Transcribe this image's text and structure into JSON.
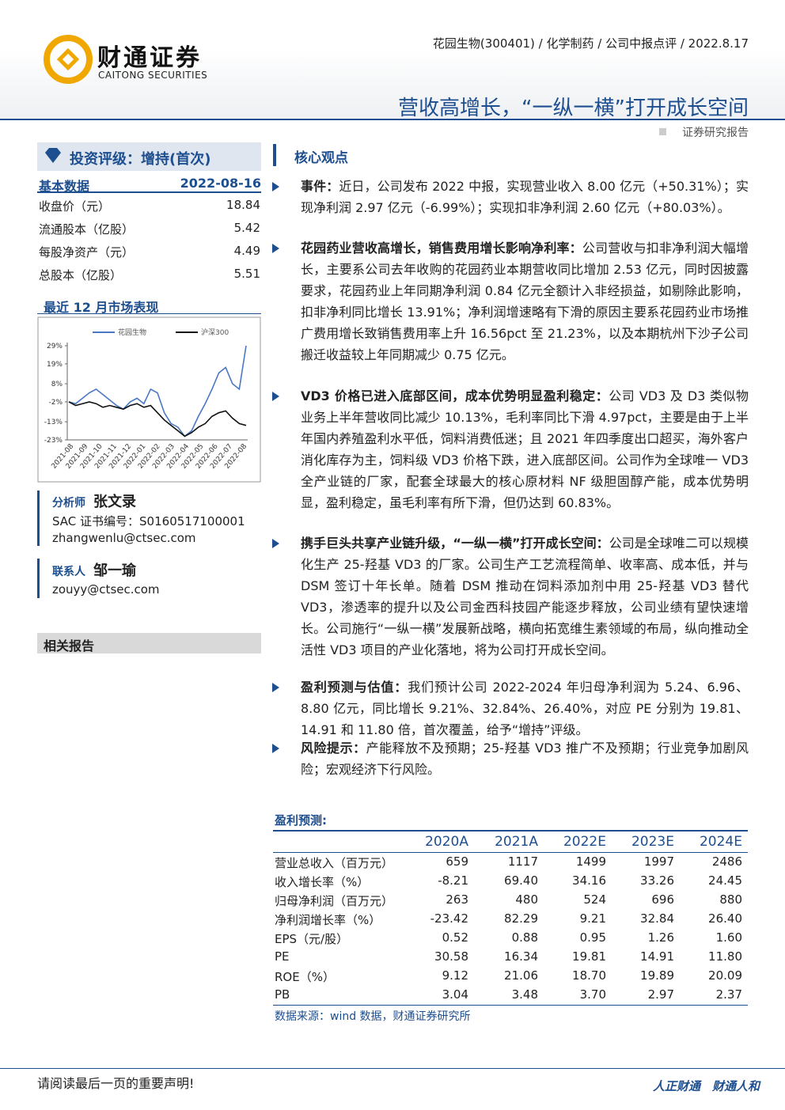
{
  "header": {
    "logo_cn": "财通证券",
    "logo_en": "CAITONG SECURITIES",
    "meta": "花园生物(300401) / 化学制药 / 公司中报点评 / 2022.8.17",
    "headline": "营收高增长，“一纵一横”打开成长空间",
    "report_type": "证券研究报告"
  },
  "sidebar": {
    "rating": "投资评级：增持(首次)",
    "basic_title": "基本数据",
    "basic_date": "2022-08-16",
    "basic_rows": [
      [
        "收盘价（元）",
        "18.84"
      ],
      [
        "流通股本（亿股）",
        "5.42"
      ],
      [
        "每股净资产（元）",
        "4.49"
      ],
      [
        "总股本（亿股）",
        "5.51"
      ]
    ],
    "market_title": "最近 12 月市场表现",
    "market_chart": {
      "type": "line",
      "categories": [
        "2021-08",
        "2021-09",
        "2021-10",
        "2021-11",
        "2021-12",
        "2022-01",
        "2022-02",
        "2022-03",
        "2022-04",
        "2022-05",
        "2022-06",
        "2022-07",
        "2022-08"
      ],
      "series": [
        {
          "name": "花园生物",
          "color": "#4a78c2",
          "values": [
            -2,
            -3,
            0,
            3,
            5,
            2,
            -1,
            -4,
            -6,
            -2,
            0,
            -3,
            5,
            3,
            -8,
            -14,
            -16,
            -21,
            -18,
            -10,
            -3,
            5,
            14,
            17,
            8,
            5,
            29
          ]
        },
        {
          "name": "沪深300",
          "color": "#111111",
          "values": [
            -2,
            -4,
            -3,
            -2,
            -3,
            -5,
            -4,
            -5,
            -6,
            -4,
            -3,
            -5,
            -4,
            -8,
            -12,
            -15,
            -18,
            -21,
            -19,
            -16,
            -14,
            -10,
            -8,
            -7,
            -11,
            -14,
            -15
          ]
        }
      ],
      "ylim": [
        -23,
        29
      ],
      "yticks": [
        {
          "value": 29,
          "label": "29%"
        },
        {
          "value": 19,
          "label": "19%"
        },
        {
          "value": 8,
          "label": "8%"
        },
        {
          "value": -2,
          "label": "-2%"
        },
        {
          "value": -13,
          "label": "-13%"
        },
        {
          "value": -23,
          "label": "-23%"
        }
      ]
    },
    "analyst_label": "分析师",
    "analyst_name": "张文录",
    "analyst_sac": "SAC 证书编号：S0160517100001",
    "analyst_email": "zhangwenlu@ctsec.com",
    "contact_label": "联系人",
    "contact_name": "邹一瑜",
    "contact_email": "zouyy@ctsec.com",
    "related": "相关报告"
  },
  "main": {
    "section": "核心观点",
    "bullets": [
      {
        "lead": "事件：",
        "text": "近日，公司发布 2022 中报，实现营业收入 8.00 亿元（+50.31%）；实现净利润 2.97 亿元（-6.99%）；实现扣非净利润 2.60 亿元（+80.03%）。"
      },
      {
        "lead": "花园药业营收高增长，销售费用增长影响净利率：",
        "text": "公司营收与扣非净利润大幅增长，主要系公司去年收购的花园药业本期营收同比增加 2.53 亿元，同时因披露要求，花园药业上年同期净利润 0.84 亿元全额计入非经损益，如剔除此影响，扣非净利同比增长 13.91%；净利润增速略有下滑的原因主要系花园药业市场推广费用增长致销售费用率上升 16.56pct 至 21.23%，以及本期杭州下沙子公司搬迁收益较上年同期减少 0.75 亿元。"
      },
      {
        "lead": "VD3 价格已进入底部区间，成本优势明显盈利稳定：",
        "text": "公司 VD3 及 D3 类似物业务上半年营收同比减少 10.13%，毛利率同比下滑 4.97pct，主要是由于上半年国内养殖盈利水平低，饲料消费低迷；且 2021 年四季度出口超买，海外客户消化库存为主，饲料级 VD3 价格下跌，进入底部区间。公司作为全球唯一 VD3 全产业链的厂家，配套全球最大的核心原材料 NF 级胆固醇产能，成本优势明显，盈利稳定，虽毛利率有所下滑，但仍达到 60.83%。"
      },
      {
        "lead": "携手巨头共享产业链升级，“一纵一横”打开成长空间：",
        "text": "公司是全球唯二可以规模化生产 25-羟基 VD3 的厂家。公司生产工艺流程简单、收率高、成本低，并与 DSM 签订十年长单。随着 DSM 推动在饲料添加剂中用 25-羟基 VD3 替代 VD3，渗透率的提升以及公司金西科技园产能逐步释放，公司业绩有望快速增长。公司施行“一纵一横”发展新战略，横向拓宽维生素领域的布局，纵向推动全活性 VD3 项目的产业化落地，将为公司打开成长空间。"
      },
      {
        "lead": "盈利预测与估值：",
        "text": "我们预计公司 2022-2024 年归母净利润为 5.24、6.96、8.80 亿元，同比增长 9.21%、32.84%、26.40%，对应 PE 分别为 19.81、14.91 和 11.80 倍，首次覆盖，给予“增持”评级。"
      },
      {
        "lead": "风险提示：",
        "text": "产能释放不及预期；25-羟基 VD3 推广不及预期；行业竞争加剧风险；宏观经济下行风险。"
      }
    ],
    "table_title": "盈利预测:",
    "table_header": [
      "2020A",
      "2021A",
      "2022E",
      "2023E",
      "2024E"
    ],
    "table_rows": [
      [
        "营业总收入（百万元）",
        "659",
        "1117",
        "1499",
        "1997",
        "2486"
      ],
      [
        "收入增长率（%）",
        "-8.21",
        "69.40",
        "34.16",
        "33.26",
        "24.45"
      ],
      [
        "归母净利润（百万元）",
        "263",
        "480",
        "524",
        "696",
        "880"
      ],
      [
        "净利润增长率（%）",
        "-23.42",
        "82.29",
        "9.21",
        "32.84",
        "26.40"
      ],
      [
        "EPS（元/股）",
        "0.52",
        "0.88",
        "0.95",
        "1.26",
        "1.60"
      ],
      [
        "PE",
        "30.58",
        "16.34",
        "19.81",
        "14.91",
        "11.80"
      ],
      [
        "ROE（%）",
        "9.12",
        "21.06",
        "18.70",
        "19.89",
        "20.09"
      ],
      [
        "PB",
        "3.04",
        "3.48",
        "3.70",
        "2.97",
        "2.37"
      ]
    ],
    "source": "数据来源：wind 数据，财通证券研究所"
  },
  "footer": {
    "notice": "请阅读最后一页的重要声明!",
    "slogan": "人正财通　财通人和"
  }
}
